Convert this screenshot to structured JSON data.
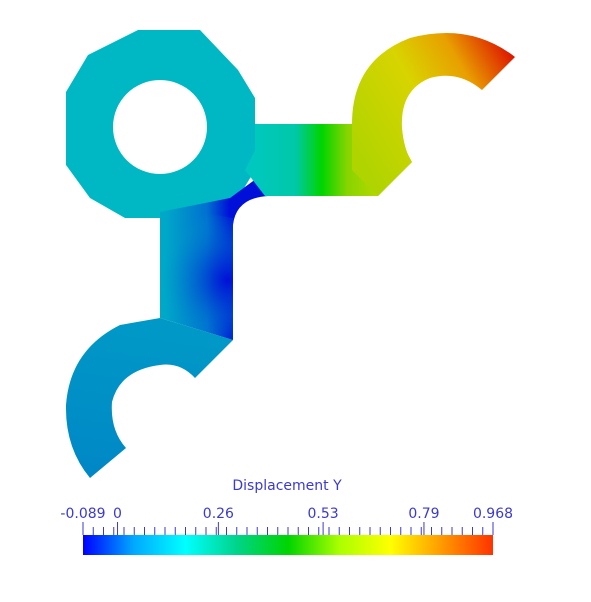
{
  "legend": {
    "title": "Displacement Y",
    "min": -0.089,
    "max": 0.968,
    "labels": [
      {
        "text": "-0.089",
        "value": -0.089
      },
      {
        "text": "0",
        "value": 0
      },
      {
        "text": "0.26",
        "value": 0.26
      },
      {
        "text": "0.53",
        "value": 0.53
      },
      {
        "text": "0.79",
        "value": 0.79
      },
      {
        "text": "0.968",
        "value": 0.968
      }
    ],
    "minor_tick_count": 41,
    "colormap": [
      "#0000ff",
      "#00aaff",
      "#00ffff",
      "#00d48a",
      "#00d400",
      "#aaff00",
      "#ffff00",
      "#ff9900",
      "#ff3300"
    ],
    "label_color": "#3a3ad0"
  },
  "mesh_colors": {
    "left_ring": "#00b8c4",
    "vertical_arm": "#00a8c8",
    "vertical_arm_min": "#0010d8",
    "lower_hook": "#0088c6",
    "horizontal_arm_start": "#00c8c0",
    "horizontal_arm_mid": "#00d400",
    "horizontal_arm_end": "#b8d800",
    "upper_hook_start": "#b0d400",
    "upper_hook_end": "#dd1100"
  }
}
